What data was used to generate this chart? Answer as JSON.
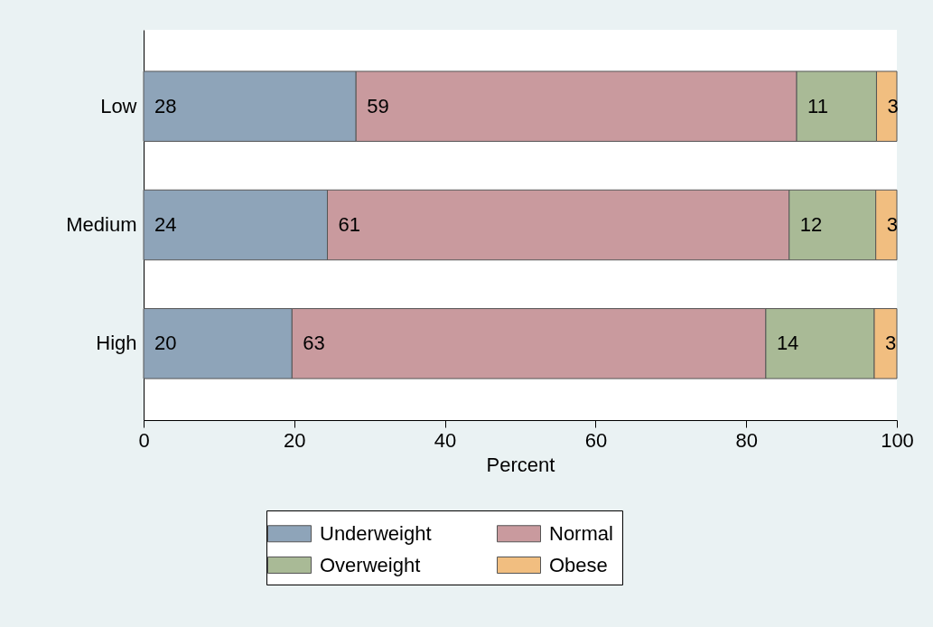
{
  "chart_data": {
    "type": "bar",
    "orientation": "horizontal",
    "stacked": true,
    "categories": [
      "Low",
      "Medium",
      "High"
    ],
    "series": [
      {
        "name": "Underweight",
        "color": "#8ea4b9",
        "values": [
          28.2,
          24.4,
          19.7
        ],
        "value_labels": [
          "28",
          "24",
          "20"
        ]
      },
      {
        "name": "Normal",
        "color": "#c99a9e",
        "values": [
          58.5,
          61.3,
          62.9
        ],
        "value_labels": [
          "59",
          "61",
          "63"
        ]
      },
      {
        "name": "Overweight",
        "color": "#a9ba96",
        "values": [
          10.6,
          11.5,
          14.4
        ],
        "value_labels": [
          "11",
          "12",
          "14"
        ]
      },
      {
        "name": "Obese",
        "color": "#f1be80",
        "values": [
          2.7,
          2.8,
          3.0
        ],
        "value_labels": [
          "3",
          "3",
          "3"
        ]
      }
    ],
    "xlim": [
      0,
      100
    ],
    "xticks": [
      0,
      20,
      40,
      60,
      80,
      100
    ],
    "xlabel": "Percent",
    "grid": false,
    "legend": "bottom"
  }
}
